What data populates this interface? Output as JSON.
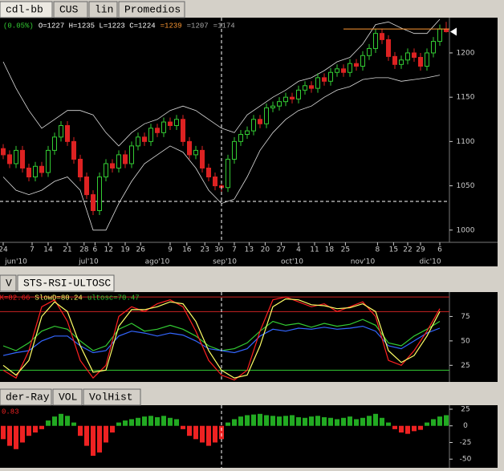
{
  "tab_bars": [
    [
      "cdl-bb",
      "CUS",
      "lin",
      "Promedios"
    ],
    [
      "V",
      "STS-RSI-ULTOSC"
    ],
    [
      "der-Ray",
      "VOL",
      "VolHist"
    ]
  ],
  "chart_data": [
    {
      "type": "candlestick",
      "header": [
        {
          "text": "(0.05%)",
          "color": "#33cc33"
        },
        {
          "text": "O=1227 H=1235 L=1223 C=1224",
          "color": "#ffffff"
        },
        {
          "text": "=1239",
          "color": "#ff9933"
        },
        {
          "text": "=1207",
          "color": "#aaaaaa"
        },
        {
          "text": "=1174",
          "color": "#aaaaaa"
        }
      ],
      "colors": {
        "up": "#33cc33",
        "down": "#dd2222",
        "bands": "#dddddd",
        "last": "#ff9933"
      },
      "xlim": [
        -0.5,
        69.5
      ],
      "ylim": [
        988,
        1238
      ],
      "yticks": [
        1000,
        1050,
        1100,
        1150,
        1200
      ],
      "xticks": [
        {
          "value": 0,
          "label": "24"
        },
        {
          "value": 4.5,
          "label": "7"
        },
        {
          "value": 7,
          "label": "14"
        },
        {
          "value": 10,
          "label": "21"
        },
        {
          "value": 12.6,
          "label": "28"
        },
        {
          "value": 14.3,
          "label": "6"
        },
        {
          "value": 16.4,
          "label": "12"
        },
        {
          "value": 19,
          "label": "19"
        },
        {
          "value": 21.4,
          "label": "26"
        },
        {
          "value": 26,
          "label": "9"
        },
        {
          "value": 28.6,
          "label": "16"
        },
        {
          "value": 31.4,
          "label": "23"
        },
        {
          "value": 33.6,
          "label": "30"
        },
        {
          "value": 36,
          "label": "7"
        },
        {
          "value": 38.3,
          "label": "13"
        },
        {
          "value": 40.8,
          "label": "20"
        },
        {
          "value": 43.3,
          "label": "27"
        },
        {
          "value": 46,
          "label": "4"
        },
        {
          "value": 48.5,
          "label": "11"
        },
        {
          "value": 50.8,
          "label": "18"
        },
        {
          "value": 53.3,
          "label": "25"
        },
        {
          "value": 58.3,
          "label": "8"
        },
        {
          "value": 60.8,
          "label": "15"
        },
        {
          "value": 63,
          "label": "22"
        },
        {
          "value": 65,
          "label": "29"
        },
        {
          "value": 68,
          "label": "6"
        }
      ],
      "months": [
        {
          "value": 2,
          "label": "jun'10"
        },
        {
          "value": 13.3,
          "label": "jul'10"
        },
        {
          "value": 24,
          "label": "ago'10"
        },
        {
          "value": 34.5,
          "label": "sep'10"
        },
        {
          "value": 45,
          "label": "oct'10"
        },
        {
          "value": 56,
          "label": "nov'10"
        },
        {
          "value": 66.5,
          "label": "dic'10"
        }
      ],
      "candles": [
        [
          1092,
          1097,
          1080,
          1085
        ],
        [
          1085,
          1090,
          1070,
          1075
        ],
        [
          1075,
          1095,
          1070,
          1090
        ],
        [
          1090,
          1095,
          1065,
          1070
        ],
        [
          1070,
          1075,
          1055,
          1060
        ],
        [
          1060,
          1077,
          1055,
          1072
        ],
        [
          1072,
          1077,
          1060,
          1065
        ],
        [
          1065,
          1095,
          1060,
          1090
        ],
        [
          1090,
          1110,
          1085,
          1105
        ],
        [
          1105,
          1123,
          1100,
          1118
        ],
        [
          1118,
          1123,
          1095,
          1100
        ],
        [
          1100,
          1105,
          1075,
          1080
        ],
        [
          1080,
          1085,
          1055,
          1060
        ],
        [
          1060,
          1065,
          1035,
          1040
        ],
        [
          1040,
          1045,
          1017,
          1022
        ],
        [
          1022,
          1065,
          1017,
          1060
        ],
        [
          1060,
          1080,
          1055,
          1075
        ],
        [
          1075,
          1080,
          1065,
          1070
        ],
        [
          1070,
          1090,
          1065,
          1085
        ],
        [
          1085,
          1090,
          1070,
          1075
        ],
        [
          1075,
          1100,
          1070,
          1095
        ],
        [
          1095,
          1110,
          1090,
          1105
        ],
        [
          1105,
          1110,
          1095,
          1100
        ],
        [
          1100,
          1120,
          1095,
          1115
        ],
        [
          1115,
          1120,
          1105,
          1110
        ],
        [
          1110,
          1127,
          1105,
          1122
        ],
        [
          1122,
          1127,
          1113,
          1118
        ],
        [
          1118,
          1130,
          1113,
          1125
        ],
        [
          1125,
          1130,
          1095,
          1100
        ],
        [
          1100,
          1105,
          1080,
          1085
        ],
        [
          1085,
          1095,
          1080,
          1090
        ],
        [
          1090,
          1095,
          1065,
          1070
        ],
        [
          1070,
          1075,
          1055,
          1060
        ],
        [
          1060,
          1065,
          1045,
          1050
        ],
        [
          1050,
          1055,
          1043,
          1048
        ],
        [
          1048,
          1085,
          1043,
          1080
        ],
        [
          1080,
          1105,
          1075,
          1100
        ],
        [
          1100,
          1113,
          1095,
          1108
        ],
        [
          1108,
          1117,
          1103,
          1112
        ],
        [
          1112,
          1130,
          1107,
          1125
        ],
        [
          1125,
          1130,
          1115,
          1120
        ],
        [
          1120,
          1143,
          1115,
          1138
        ],
        [
          1138,
          1145,
          1133,
          1140
        ],
        [
          1140,
          1150,
          1135,
          1145
        ],
        [
          1145,
          1155,
          1140,
          1150
        ],
        [
          1150,
          1155,
          1143,
          1148
        ],
        [
          1148,
          1163,
          1143,
          1158
        ],
        [
          1158,
          1168,
          1153,
          1163
        ],
        [
          1163,
          1168,
          1155,
          1160
        ],
        [
          1160,
          1177,
          1155,
          1172
        ],
        [
          1172,
          1177,
          1163,
          1168
        ],
        [
          1168,
          1183,
          1163,
          1178
        ],
        [
          1178,
          1187,
          1173,
          1182
        ],
        [
          1182,
          1187,
          1173,
          1178
        ],
        [
          1178,
          1193,
          1173,
          1188
        ],
        [
          1188,
          1193,
          1180,
          1185
        ],
        [
          1185,
          1202,
          1180,
          1197
        ],
        [
          1197,
          1210,
          1192,
          1205
        ],
        [
          1205,
          1227,
          1200,
          1222
        ],
        [
          1222,
          1227,
          1210,
          1215
        ],
        [
          1215,
          1220,
          1191,
          1196
        ],
        [
          1196,
          1201,
          1182,
          1187
        ],
        [
          1187,
          1197,
          1182,
          1192
        ],
        [
          1192,
          1205,
          1187,
          1200
        ],
        [
          1200,
          1205,
          1190,
          1195
        ],
        [
          1195,
          1200,
          1180,
          1185
        ],
        [
          1185,
          1205,
          1180,
          1200
        ],
        [
          1200,
          1218,
          1195,
          1213
        ],
        [
          1213,
          1232,
          1208,
          1227
        ],
        [
          1227,
          1235,
          1223,
          1224
        ]
      ],
      "bands": {
        "x": [
          0,
          2,
          4,
          6,
          8,
          10,
          12,
          14,
          16,
          18,
          20,
          22,
          24,
          26,
          28,
          30,
          32,
          34,
          36,
          38,
          40,
          42,
          44,
          46,
          48,
          50,
          52,
          54,
          56,
          58,
          60,
          62,
          64,
          66,
          68
        ],
        "upper": [
          1190,
          1160,
          1135,
          1115,
          1125,
          1135,
          1135,
          1130,
          1110,
          1095,
          1110,
          1120,
          1125,
          1135,
          1140,
          1135,
          1125,
          1115,
          1110,
          1130,
          1140,
          1150,
          1158,
          1168,
          1172,
          1180,
          1190,
          1195,
          1210,
          1232,
          1235,
          1228,
          1222,
          1222,
          1238
        ],
        "lower": [
          1060,
          1045,
          1040,
          1045,
          1055,
          1060,
          1045,
          1000,
          1000,
          1030,
          1055,
          1075,
          1085,
          1095,
          1088,
          1070,
          1045,
          1030,
          1035,
          1060,
          1090,
          1110,
          1125,
          1135,
          1140,
          1150,
          1158,
          1162,
          1170,
          1172,
          1172,
          1168,
          1170,
          1172,
          1175
        ]
      }
    },
    {
      "type": "line",
      "xlim": [
        -0.5,
        69.5
      ],
      "ylim": [
        8,
        100
      ],
      "yticks": [
        25,
        50,
        75
      ],
      "levels": [
        {
          "value": 95,
          "color": "#cc2222"
        },
        {
          "value": 80,
          "color": "#cc2222"
        },
        {
          "value": 20,
          "color": "#33cc33"
        }
      ],
      "x": [
        0,
        2,
        4,
        6,
        8,
        10,
        12,
        14,
        16,
        18,
        20,
        22,
        24,
        26,
        28,
        30,
        32,
        34,
        36,
        38,
        40,
        42,
        44,
        46,
        48,
        50,
        52,
        54,
        56,
        58,
        60,
        62,
        64,
        66,
        68
      ],
      "series": [
        {
          "name": "ultosc=70.47",
          "color": "#33cc33",
          "values": [
            45,
            40,
            48,
            60,
            65,
            62,
            50,
            40,
            45,
            62,
            68,
            60,
            62,
            66,
            62,
            55,
            45,
            40,
            42,
            48,
            60,
            70,
            66,
            68,
            64,
            68,
            65,
            67,
            72,
            66,
            48,
            45,
            55,
            62,
            70
          ]
        },
        {
          "color": "#3366ff",
          "values": [
            35,
            38,
            40,
            50,
            55,
            55,
            45,
            38,
            40,
            55,
            60,
            58,
            55,
            58,
            56,
            50,
            42,
            40,
            38,
            42,
            55,
            62,
            60,
            63,
            62,
            64,
            62,
            63,
            65,
            60,
            45,
            42,
            50,
            58,
            63
          ]
        },
        {
          "name": "SlowK=82.66",
          "color": "#ff2020",
          "values": [
            20,
            12,
            40,
            85,
            92,
            70,
            30,
            12,
            25,
            75,
            85,
            80,
            88,
            92,
            85,
            60,
            30,
            15,
            10,
            20,
            60,
            92,
            95,
            90,
            85,
            88,
            80,
            85,
            90,
            75,
            30,
            25,
            40,
            60,
            83
          ]
        },
        {
          "name": "SlowD=80.24",
          "color": "#ffff66",
          "values": [
            25,
            15,
            30,
            75,
            90,
            80,
            45,
            18,
            20,
            65,
            82,
            82,
            85,
            90,
            88,
            70,
            40,
            20,
            12,
            15,
            45,
            85,
            93,
            92,
            87,
            86,
            83,
            84,
            88,
            80,
            40,
            28,
            35,
            55,
            80
          ]
        }
      ]
    },
    {
      "type": "bar",
      "label": "0.83",
      "xlim": [
        -0.5,
        69.5
      ],
      "ylim": [
        -63,
        31
      ],
      "yticks": [
        25,
        0,
        -25,
        -50
      ],
      "colors": {
        "positive": "#22aa22",
        "negative": "#ee2222"
      },
      "values": [
        -20,
        -30,
        -35,
        -25,
        -15,
        -10,
        -5,
        8,
        14,
        18,
        15,
        5,
        -15,
        -30,
        -45,
        -40,
        -25,
        -10,
        5,
        8,
        10,
        12,
        14,
        15,
        13,
        15,
        12,
        10,
        -5,
        -15,
        -20,
        -25,
        -30,
        -25,
        -20,
        5,
        10,
        14,
        16,
        17,
        18,
        16,
        15,
        14,
        15,
        16,
        13,
        12,
        14,
        15,
        13,
        12,
        10,
        12,
        14,
        10,
        12,
        15,
        18,
        12,
        5,
        -5,
        -10,
        -12,
        -8,
        -6,
        5,
        10,
        14,
        16
      ]
    }
  ]
}
